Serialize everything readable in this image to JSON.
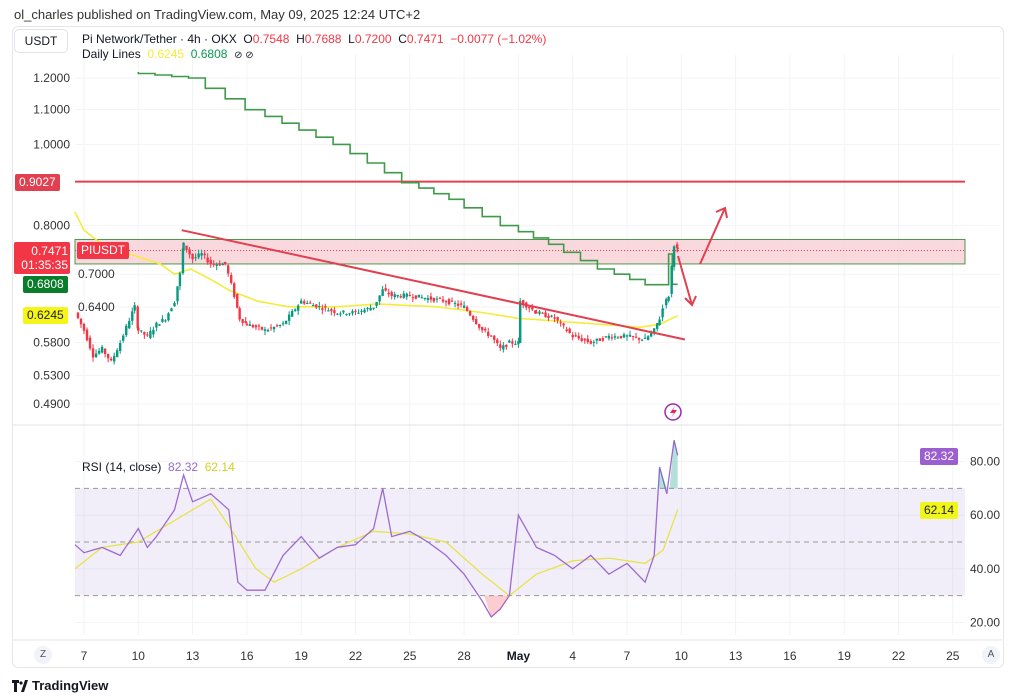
{
  "header": {
    "published": "ol_charles published on TradingView.com, May 09, 2025 12:24 UTC+2",
    "currency": "USDT",
    "symbol": "Pi Network/Tether · 4h · OKX",
    "o_label": "O",
    "o": "0.7548",
    "h_label": "H",
    "h": "0.7688",
    "l_label": "L",
    "l": "0.7200",
    "c_label": "C",
    "c": "0.7471",
    "change": "−0.0077 (−1.02%)",
    "daily_lines_label": "Daily Lines",
    "dl1": "0.6245",
    "dl2": "0.6808",
    "icons": "⊘ ⊘"
  },
  "price_tags": {
    "level": "0.9027",
    "last": "0.7471",
    "countdown": "01:35:35",
    "symbol_tag": "PIUSDT",
    "green": "0.6808",
    "yellow": "0.6245"
  },
  "rsi": {
    "label": "RSI (14, close)",
    "value": "82.32",
    "ma": "62.14"
  },
  "footer": {
    "brand": "TradingView",
    "z_button": "Z",
    "a_button": "A"
  },
  "colors": {
    "up": "#089981",
    "down": "#f23645",
    "yellow": "#f5eb3c",
    "green_line": "#3f9a4b",
    "rsi": "#9c6ad0",
    "level": "#e0404f"
  },
  "chart_data": [
    {
      "type": "candlestick",
      "title": "Pi Network/Tether 4h",
      "yscale": "log",
      "ylim": [
        0.47,
        1.25
      ],
      "yticks": [
        "1.2000",
        "1.1000",
        "1.0000",
        "0.8000",
        "0.7000",
        "0.6400",
        "0.5800",
        "0.5300",
        "0.4900"
      ],
      "xticks": [
        "7",
        "10",
        "13",
        "16",
        "19",
        "22",
        "25",
        "28",
        "May",
        "4",
        "7",
        "10",
        "13",
        "16",
        "19",
        "22",
        "25"
      ],
      "x_unit": "days since Apr 7, 2025",
      "close_path": [
        [
          -0.5,
          0.63
        ],
        [
          0,
          0.6
        ],
        [
          0.5,
          0.56
        ],
        [
          1,
          0.57
        ],
        [
          1.5,
          0.55
        ],
        [
          2,
          0.58
        ],
        [
          2.8,
          0.64
        ],
        [
          3,
          0.6
        ],
        [
          3.5,
          0.59
        ],
        [
          4,
          0.61
        ],
        [
          4.5,
          0.62
        ],
        [
          5,
          0.65
        ],
        [
          5.3,
          0.7
        ],
        [
          5.5,
          0.76
        ],
        [
          6,
          0.73
        ],
        [
          6.5,
          0.74
        ],
        [
          7,
          0.72
        ],
        [
          7.8,
          0.72
        ],
        [
          8.3,
          0.66
        ],
        [
          8.6,
          0.62
        ],
        [
          9,
          0.61
        ],
        [
          10,
          0.6
        ],
        [
          11,
          0.61
        ],
        [
          12,
          0.65
        ],
        [
          13,
          0.64
        ],
        [
          14,
          0.63
        ],
        [
          15,
          0.63
        ],
        [
          16,
          0.64
        ],
        [
          16.5,
          0.67
        ],
        [
          17,
          0.66
        ],
        [
          18,
          0.66
        ],
        [
          19,
          0.655
        ],
        [
          20,
          0.65
        ],
        [
          21,
          0.64
        ],
        [
          22,
          0.6
        ],
        [
          22.5,
          0.59
        ],
        [
          23,
          0.57
        ],
        [
          23.5,
          0.58
        ],
        [
          24,
          0.58
        ],
        [
          24.1,
          0.65
        ],
        [
          25,
          0.63
        ],
        [
          26,
          0.62
        ],
        [
          27,
          0.59
        ],
        [
          28,
          0.58
        ],
        [
          29,
          0.59
        ],
        [
          30,
          0.59
        ],
        [
          31,
          0.585
        ],
        [
          31.5,
          0.6
        ],
        [
          31.8,
          0.62
        ],
        [
          32,
          0.64
        ],
        [
          32.3,
          0.66
        ],
        [
          32.6,
          0.76
        ],
        [
          32.8,
          0.7471
        ]
      ],
      "yellow_line": [
        [
          -0.5,
          0.83
        ],
        [
          0,
          0.79
        ],
        [
          1,
          0.76
        ],
        [
          2.5,
          0.74
        ],
        [
          4.2,
          0.72
        ],
        [
          5,
          0.7
        ],
        [
          5.9,
          0.71
        ],
        [
          7,
          0.69
        ],
        [
          8,
          0.67
        ],
        [
          9.6,
          0.65
        ],
        [
          11.3,
          0.64
        ],
        [
          14,
          0.64
        ],
        [
          16.2,
          0.645
        ],
        [
          19.5,
          0.64
        ],
        [
          22,
          0.63
        ],
        [
          24,
          0.62
        ],
        [
          26.3,
          0.615
        ],
        [
          28.5,
          0.61
        ],
        [
          30.7,
          0.605
        ],
        [
          31.8,
          0.61
        ],
        [
          32.8,
          0.6245
        ]
      ],
      "green_line": [
        [
          3,
          1.22
        ],
        [
          6.7,
          1.2
        ],
        [
          10,
          1.1
        ],
        [
          14.7,
          1.0
        ],
        [
          18.5,
          0.9
        ],
        [
          21,
          0.86
        ],
        [
          24,
          0.8
        ],
        [
          26.5,
          0.76
        ],
        [
          29.3,
          0.71
        ],
        [
          31,
          0.69
        ],
        [
          32.3,
          0.68
        ],
        [
          32.5,
          0.74
        ],
        [
          32.8,
          0.6808
        ]
      ],
      "horizontal_level": 0.9027,
      "zone": [
        0.72,
        0.77
      ],
      "trendline": [
        [
          5.4,
          0.79
        ],
        [
          33.2,
          0.585
        ]
      ]
    },
    {
      "type": "line",
      "title": "RSI (14, close)",
      "ylim": [
        15,
        90
      ],
      "yticks": [
        "80.00",
        "60.00",
        "40.00",
        "20.00"
      ],
      "bands": [
        30,
        50,
        70
      ],
      "rsi": [
        [
          -0.5,
          49
        ],
        [
          0,
          46
        ],
        [
          1,
          48
        ],
        [
          2,
          45
        ],
        [
          3,
          55
        ],
        [
          3.5,
          48
        ],
        [
          4,
          52
        ],
        [
          5,
          62
        ],
        [
          5.5,
          75
        ],
        [
          6,
          65
        ],
        [
          7,
          68
        ],
        [
          8,
          62
        ],
        [
          8.5,
          35
        ],
        [
          9,
          32
        ],
        [
          10,
          32
        ],
        [
          11,
          45
        ],
        [
          12,
          52
        ],
        [
          13,
          44
        ],
        [
          14,
          48
        ],
        [
          15,
          49
        ],
        [
          16,
          55
        ],
        [
          16.5,
          70
        ],
        [
          17,
          52
        ],
        [
          18,
          54
        ],
        [
          19,
          50
        ],
        [
          20,
          45
        ],
        [
          21,
          38
        ],
        [
          22,
          28
        ],
        [
          22.5,
          22
        ],
        [
          23,
          25
        ],
        [
          23.5,
          30
        ],
        [
          24,
          60
        ],
        [
          25,
          48
        ],
        [
          26,
          45
        ],
        [
          27,
          40
        ],
        [
          28,
          45
        ],
        [
          29,
          38
        ],
        [
          30,
          42
        ],
        [
          31,
          35
        ],
        [
          31.5,
          45
        ],
        [
          31.8,
          78
        ],
        [
          32.2,
          68
        ],
        [
          32.6,
          88
        ],
        [
          32.8,
          82.32
        ]
      ],
      "rsi_ma": [
        [
          -0.5,
          40
        ],
        [
          1,
          48
        ],
        [
          3,
          50
        ],
        [
          5,
          58
        ],
        [
          7,
          66
        ],
        [
          8,
          56
        ],
        [
          9.5,
          40
        ],
        [
          10.5,
          35
        ],
        [
          12,
          40
        ],
        [
          14,
          48
        ],
        [
          16,
          54
        ],
        [
          18,
          53
        ],
        [
          20,
          50
        ],
        [
          22,
          38
        ],
        [
          23.5,
          30
        ],
        [
          25,
          38
        ],
        [
          27,
          43
        ],
        [
          29,
          44
        ],
        [
          31,
          42
        ],
        [
          32,
          47
        ],
        [
          32.8,
          62.14
        ]
      ]
    }
  ]
}
